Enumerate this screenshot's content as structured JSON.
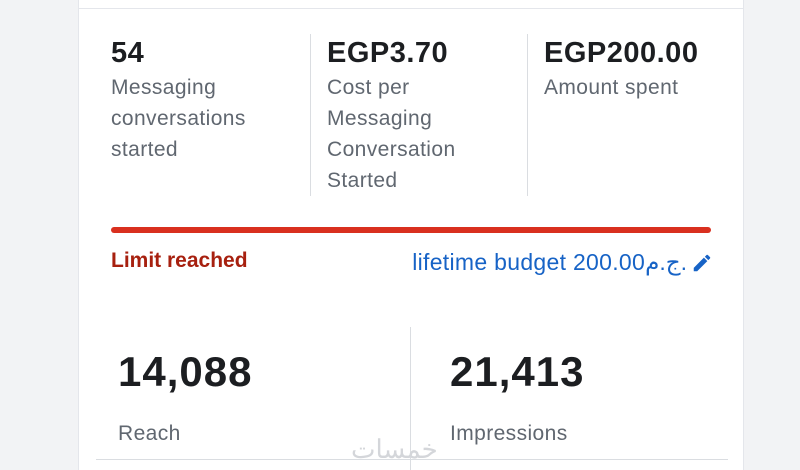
{
  "metrics": [
    {
      "value": "54",
      "label": "Messaging conversations started"
    },
    {
      "value": "EGP3.70",
      "label": "Cost per Messaging Conversation Started"
    },
    {
      "value": "EGP200.00",
      "label": "Amount spent"
    }
  ],
  "status": {
    "label": "Limit reached",
    "budget": "lifetime budget 200.00ج.م."
  },
  "totals": [
    {
      "value": "14,088",
      "label": "Reach"
    },
    {
      "value": "21,413",
      "label": "Impressions"
    }
  ],
  "watermark": "خمسات"
}
